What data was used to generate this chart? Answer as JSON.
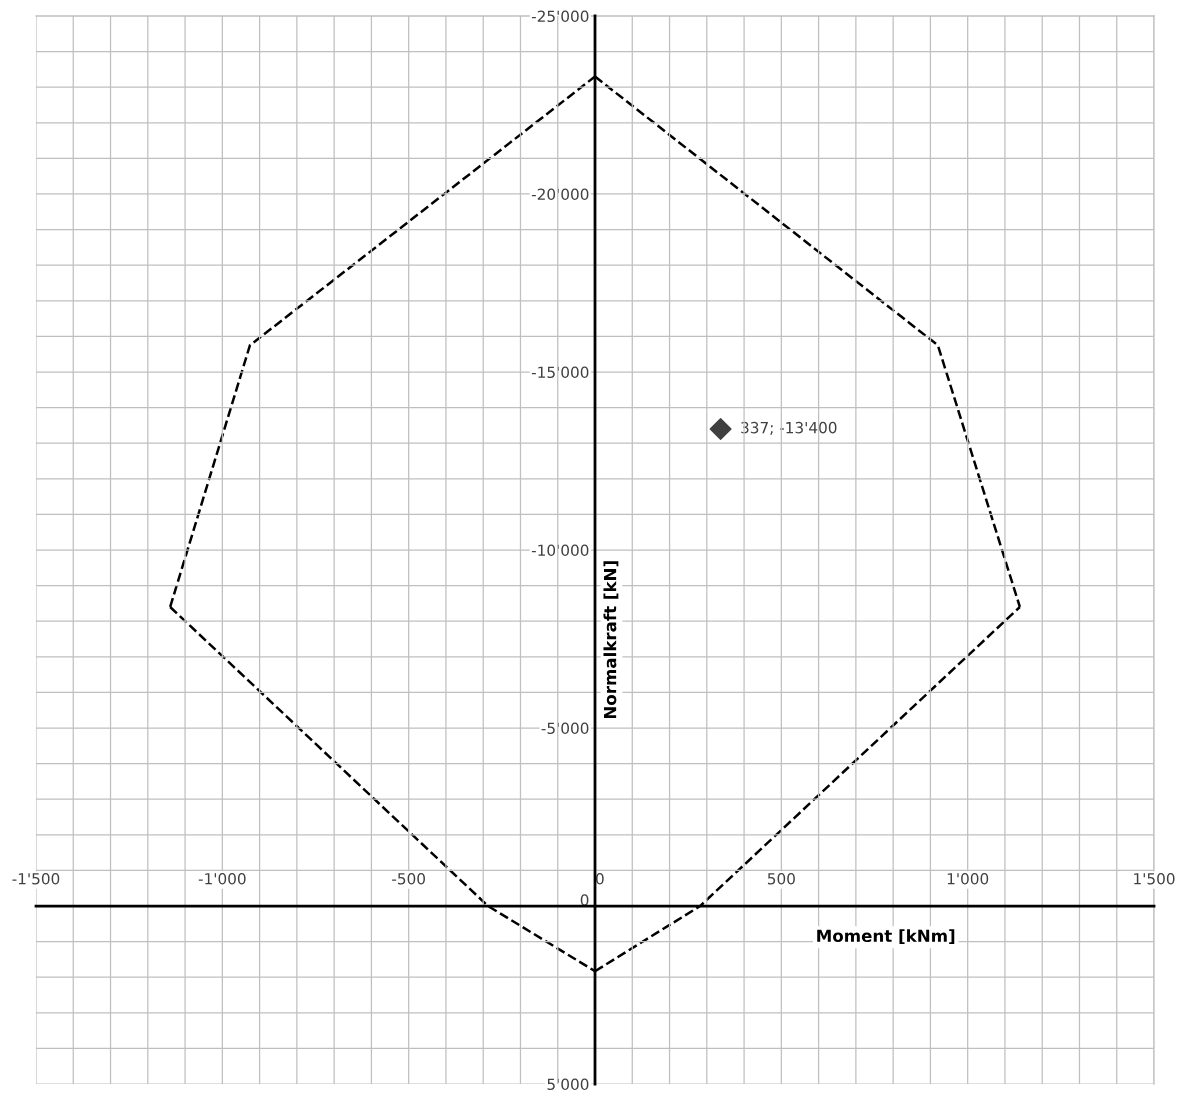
{
  "chart_data": {
    "type": "line",
    "xlabel": "Moment [kNm]",
    "ylabel": "Normalkraft [kN]",
    "series": [
      {
        "type": "line",
        "color": "#000000",
        "line_style": "dashed",
        "marker": "none",
        "x": [
          0,
          920,
          1140
        ],
        "values": [
          -23300,
          -15750,
          -8400
        ]
      },
      {
        "type": "line",
        "color": "#000000",
        "line_style": "dashed",
        "marker": "none",
        "x": [
          0,
          282,
          1140
        ],
        "values": [
          1830,
          0,
          -8400
        ]
      },
      {
        "type": "line",
        "color": "#000000",
        "line_style": "dashed",
        "marker": "none",
        "x": [
          -1140,
          -287,
          0
        ],
        "values": [
          -8400,
          0,
          1830
        ]
      },
      {
        "type": "line",
        "color": "#000000",
        "line_style": "dashed",
        "marker": "none",
        "x": [
          -1140,
          -926,
          0
        ],
        "values": [
          -8400,
          -15750,
          -23300
        ]
      },
      {
        "type": "scatter",
        "color": "#404040",
        "marker": "diamond",
        "x": [
          337
        ],
        "values": [
          -13400
        ]
      }
    ],
    "annotations": [
      {
        "text": "337; -13'400",
        "x": 337,
        "y": -13400
      }
    ],
    "xlim": [
      -1500,
      1500
    ],
    "ylim": [
      5000,
      -25000
    ],
    "xticks": [
      {
        "value": -1500,
        "label": "-1'500"
      },
      {
        "value": -1400,
        "label": null
      },
      {
        "value": -1300,
        "label": null
      },
      {
        "value": -1200,
        "label": null
      },
      {
        "value": -1100,
        "label": null
      },
      {
        "value": -1000,
        "label": "-1'000"
      },
      {
        "value": -900,
        "label": null
      },
      {
        "value": -800,
        "label": null
      },
      {
        "value": -700,
        "label": null
      },
      {
        "value": -600,
        "label": null
      },
      -500,
      {
        "value": -400,
        "label": null
      },
      {
        "value": -300,
        "label": null
      },
      {
        "value": -200,
        "label": null
      },
      {
        "value": -100,
        "label": null
      },
      0,
      {
        "value": 100,
        "label": null
      },
      {
        "value": 200,
        "label": null
      },
      {
        "value": 300,
        "label": null
      },
      {
        "value": 400,
        "label": null
      },
      500,
      {
        "value": 600,
        "label": null
      },
      {
        "value": 700,
        "label": null
      },
      {
        "value": 800,
        "label": null
      },
      {
        "value": 900,
        "label": null
      },
      {
        "value": 1000,
        "label": "1'000"
      },
      {
        "value": 1100,
        "label": null
      },
      {
        "value": 1200,
        "label": null
      },
      {
        "value": 1300,
        "label": null
      },
      {
        "value": 1400,
        "label": null
      },
      {
        "value": 1500,
        "label": "1'500"
      }
    ],
    "yticks": [
      {
        "value": -25000,
        "label": "-25'000"
      },
      {
        "value": -24000,
        "label": null
      },
      {
        "value": -23000,
        "label": null
      },
      {
        "value": -22000,
        "label": null
      },
      {
        "value": -21000,
        "label": null
      },
      {
        "value": -20000,
        "label": "-20'000"
      },
      {
        "value": -19000,
        "label": null
      },
      {
        "value": -18000,
        "label": null
      },
      {
        "value": -17000,
        "label": null
      },
      {
        "value": -16000,
        "label": null
      },
      {
        "value": -15000,
        "label": "-15'000"
      },
      {
        "value": -14000,
        "label": null
      },
      {
        "value": -13000,
        "label": null
      },
      {
        "value": -12000,
        "label": null
      },
      {
        "value": -11000,
        "label": null
      },
      {
        "value": -10000,
        "label": "-10'000"
      },
      {
        "value": -9000,
        "label": null
      },
      {
        "value": -8000,
        "label": null
      },
      {
        "value": -7000,
        "label": null
      },
      {
        "value": -6000,
        "label": null
      },
      {
        "value": -5000,
        "label": "-5'000"
      },
      {
        "value": -4000,
        "label": null
      },
      {
        "value": -3000,
        "label": null
      },
      {
        "value": -2000,
        "label": null
      },
      {
        "value": -1000,
        "label": null
      },
      0,
      {
        "value": 1000,
        "label": null
      },
      {
        "value": 2000,
        "label": null
      },
      {
        "value": 3000,
        "label": null
      },
      {
        "value": 4000,
        "label": null
      },
      {
        "value": 5000,
        "label": "5'000"
      }
    ],
    "grid": true,
    "legend": false
  }
}
